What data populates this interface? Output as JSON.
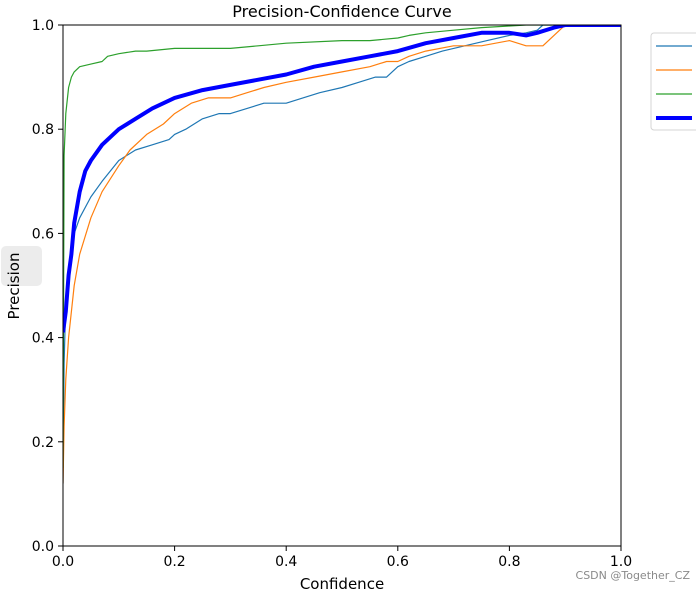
{
  "chart_data": {
    "type": "line",
    "title": "Precision-Confidence Curve",
    "xlabel": "Confidence",
    "ylabel": "Precision",
    "xlim": [
      0,
      1
    ],
    "ylim": [
      0,
      1
    ],
    "x_ticks": [
      "0.0",
      "0.2",
      "0.4",
      "0.6",
      "0.8",
      "1.0"
    ],
    "y_ticks": [
      "0.0",
      "0.2",
      "0.4",
      "0.6",
      "0.8",
      "1.0"
    ],
    "grid": false,
    "legend_position": "outside-top-right",
    "series": [
      {
        "color": "#1f77b4",
        "width": 1.2,
        "points": [
          [
            0.0,
            0.12
          ],
          [
            0.002,
            0.35
          ],
          [
            0.005,
            0.47
          ],
          [
            0.01,
            0.53
          ],
          [
            0.02,
            0.6
          ],
          [
            0.03,
            0.63
          ],
          [
            0.05,
            0.67
          ],
          [
            0.07,
            0.7
          ],
          [
            0.1,
            0.74
          ],
          [
            0.13,
            0.76
          ],
          [
            0.16,
            0.77
          ],
          [
            0.19,
            0.78
          ],
          [
            0.2,
            0.79
          ],
          [
            0.22,
            0.8
          ],
          [
            0.25,
            0.82
          ],
          [
            0.28,
            0.83
          ],
          [
            0.3,
            0.83
          ],
          [
            0.33,
            0.84
          ],
          [
            0.36,
            0.85
          ],
          [
            0.4,
            0.85
          ],
          [
            0.43,
            0.86
          ],
          [
            0.46,
            0.87
          ],
          [
            0.5,
            0.88
          ],
          [
            0.53,
            0.89
          ],
          [
            0.56,
            0.9
          ],
          [
            0.58,
            0.9
          ],
          [
            0.6,
            0.92
          ],
          [
            0.62,
            0.93
          ],
          [
            0.65,
            0.94
          ],
          [
            0.68,
            0.95
          ],
          [
            0.72,
            0.96
          ],
          [
            0.76,
            0.97
          ],
          [
            0.8,
            0.98
          ],
          [
            0.83,
            0.985
          ],
          [
            0.85,
            0.99
          ],
          [
            0.86,
            1.0
          ],
          [
            1.0,
            1.0
          ]
        ]
      },
      {
        "color": "#ff7f0e",
        "width": 1.2,
        "points": [
          [
            0.0,
            0.12
          ],
          [
            0.002,
            0.23
          ],
          [
            0.005,
            0.32
          ],
          [
            0.01,
            0.4
          ],
          [
            0.02,
            0.5
          ],
          [
            0.03,
            0.56
          ],
          [
            0.05,
            0.63
          ],
          [
            0.07,
            0.68
          ],
          [
            0.1,
            0.73
          ],
          [
            0.12,
            0.76
          ],
          [
            0.15,
            0.79
          ],
          [
            0.18,
            0.81
          ],
          [
            0.2,
            0.83
          ],
          [
            0.23,
            0.85
          ],
          [
            0.26,
            0.86
          ],
          [
            0.3,
            0.86
          ],
          [
            0.33,
            0.87
          ],
          [
            0.36,
            0.88
          ],
          [
            0.4,
            0.89
          ],
          [
            0.45,
            0.9
          ],
          [
            0.5,
            0.91
          ],
          [
            0.55,
            0.92
          ],
          [
            0.58,
            0.93
          ],
          [
            0.6,
            0.93
          ],
          [
            0.62,
            0.94
          ],
          [
            0.65,
            0.95
          ],
          [
            0.7,
            0.96
          ],
          [
            0.75,
            0.96
          ],
          [
            0.8,
            0.97
          ],
          [
            0.83,
            0.96
          ],
          [
            0.86,
            0.96
          ],
          [
            0.87,
            0.97
          ],
          [
            0.88,
            0.98
          ],
          [
            0.89,
            0.99
          ],
          [
            0.9,
            1.0
          ],
          [
            1.0,
            1.0
          ]
        ]
      },
      {
        "color": "#2ca02c",
        "width": 1.2,
        "points": [
          [
            0.0,
            0.15
          ],
          [
            0.002,
            0.75
          ],
          [
            0.005,
            0.83
          ],
          [
            0.01,
            0.88
          ],
          [
            0.015,
            0.9
          ],
          [
            0.02,
            0.91
          ],
          [
            0.03,
            0.92
          ],
          [
            0.05,
            0.925
          ],
          [
            0.07,
            0.93
          ],
          [
            0.08,
            0.94
          ],
          [
            0.1,
            0.945
          ],
          [
            0.13,
            0.95
          ],
          [
            0.15,
            0.95
          ],
          [
            0.2,
            0.955
          ],
          [
            0.3,
            0.955
          ],
          [
            0.35,
            0.96
          ],
          [
            0.4,
            0.965
          ],
          [
            0.5,
            0.97
          ],
          [
            0.55,
            0.97
          ],
          [
            0.6,
            0.975
          ],
          [
            0.62,
            0.98
          ],
          [
            0.65,
            0.985
          ],
          [
            0.7,
            0.99
          ],
          [
            0.75,
            0.995
          ],
          [
            0.8,
            0.998
          ],
          [
            0.83,
            1.0
          ],
          [
            1.0,
            1.0
          ]
        ]
      },
      {
        "color": "#0000ff",
        "width": 4,
        "points": [
          [
            0.0,
            0.41
          ],
          [
            0.005,
            0.45
          ],
          [
            0.01,
            0.52
          ],
          [
            0.015,
            0.56
          ],
          [
            0.02,
            0.62
          ],
          [
            0.03,
            0.68
          ],
          [
            0.04,
            0.72
          ],
          [
            0.05,
            0.74
          ],
          [
            0.07,
            0.77
          ],
          [
            0.1,
            0.8
          ],
          [
            0.13,
            0.82
          ],
          [
            0.16,
            0.84
          ],
          [
            0.2,
            0.86
          ],
          [
            0.25,
            0.875
          ],
          [
            0.3,
            0.885
          ],
          [
            0.35,
            0.895
          ],
          [
            0.4,
            0.905
          ],
          [
            0.45,
            0.92
          ],
          [
            0.5,
            0.93
          ],
          [
            0.55,
            0.94
          ],
          [
            0.6,
            0.95
          ],
          [
            0.65,
            0.965
          ],
          [
            0.7,
            0.975
          ],
          [
            0.75,
            0.985
          ],
          [
            0.8,
            0.985
          ],
          [
            0.83,
            0.98
          ],
          [
            0.85,
            0.985
          ],
          [
            0.88,
            0.995
          ],
          [
            0.9,
            1.0
          ],
          [
            1.0,
            1.0
          ]
        ]
      }
    ]
  },
  "watermark": "CSDN @Together_CZ"
}
